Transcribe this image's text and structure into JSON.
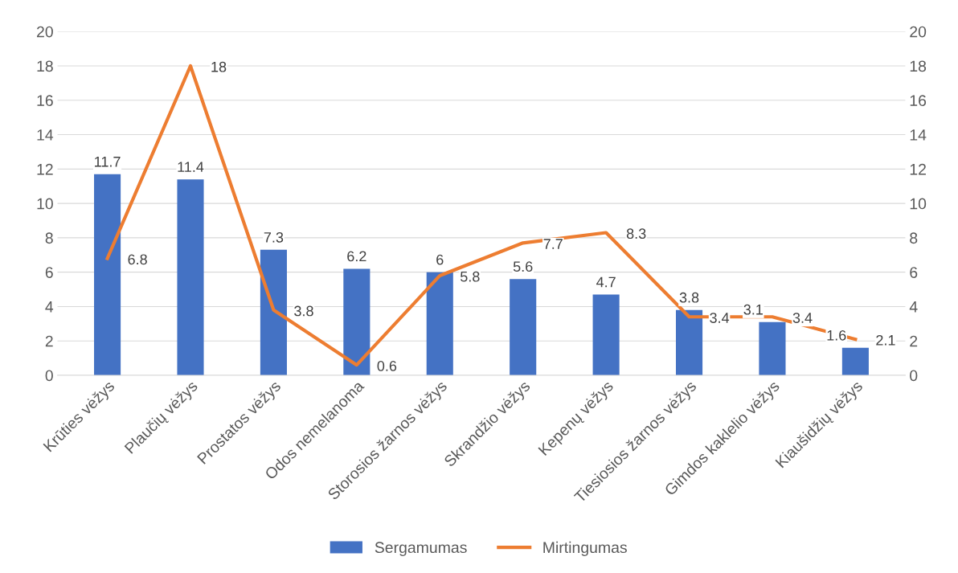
{
  "chart_data": {
    "type": "bar",
    "categories": [
      "Krūties vėžys",
      "Plaučių vėžys",
      "Prostatos vėžys",
      "Odos nemelanoma",
      "Storosios žarnos vėžys",
      "Skrandžio vėžys",
      "Kepenų vėžys",
      "Tiesiosios žarnos vėžys",
      "Gimdos kaklelio vėžys",
      "Kiaušidžių vėžys"
    ],
    "series": [
      {
        "name": "Sergamumas",
        "color": "#4472c4",
        "values": [
          11.7,
          11.4,
          7.3,
          6.2,
          6,
          5.6,
          4.7,
          3.8,
          3.1,
          1.6
        ]
      },
      {
        "name": "Mirtingumas",
        "color": "#ed7d31",
        "type": "line",
        "axis": "y2",
        "values": [
          6.8,
          18,
          3.8,
          0.6,
          5.8,
          7.7,
          8.3,
          3.4,
          3.4,
          2.1
        ]
      }
    ],
    "ylim": [
      0,
      20
    ],
    "yticks": [
      0,
      2,
      4,
      6,
      8,
      10,
      12,
      14,
      16,
      18,
      20
    ],
    "y2lim": [
      0,
      20
    ],
    "y2ticks": [
      0,
      2,
      4,
      6,
      8,
      10,
      12,
      14,
      16,
      18,
      20
    ],
    "grid": "y",
    "legend": "bottom",
    "data_labels": true,
    "marker": "none",
    "line_style": "solid"
  }
}
